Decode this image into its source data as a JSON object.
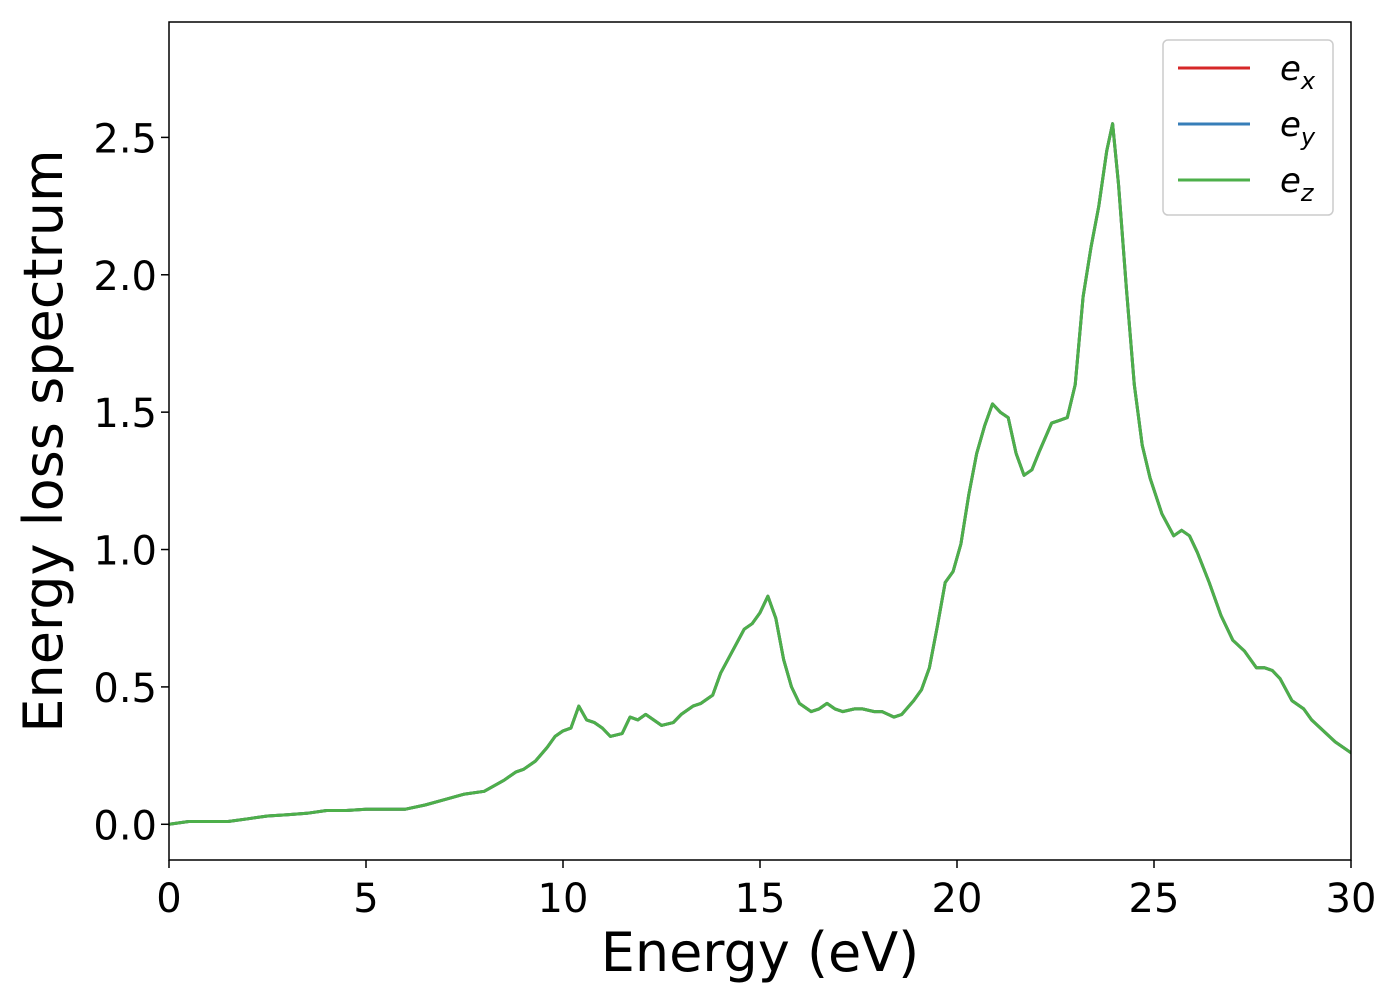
{
  "chart_data": {
    "type": "line",
    "title": "",
    "xlabel": "Energy (eV)",
    "ylabel": "Energy loss spectrum",
    "xlim": [
      0,
      30
    ],
    "ylim": [
      -0.13,
      2.92
    ],
    "xticks": [
      0,
      5,
      10,
      15,
      20,
      25,
      30
    ],
    "yticks": [
      0.0,
      0.5,
      1.0,
      1.5,
      2.0,
      2.5
    ],
    "grid": false,
    "legend_position": "top-right",
    "series": [
      {
        "name": "e",
        "subscript": "x",
        "color": "#d62728",
        "x": [
          0,
          0.5,
          1,
          1.5,
          2,
          2.5,
          3,
          3.5,
          4,
          4.5,
          5,
          5.5,
          6,
          6.5,
          7,
          7.5,
          8,
          8.5,
          8.8,
          9,
          9.3,
          9.6,
          9.8,
          10,
          10.2,
          10.4,
          10.6,
          10.8,
          11,
          11.2,
          11.5,
          11.7,
          11.9,
          12.1,
          12.3,
          12.5,
          12.8,
          13,
          13.3,
          13.5,
          13.8,
          14,
          14.3,
          14.6,
          14.8,
          15,
          15.2,
          15.4,
          15.6,
          15.8,
          16,
          16.3,
          16.5,
          16.7,
          16.9,
          17.1,
          17.4,
          17.6,
          17.9,
          18.1,
          18.4,
          18.6,
          18.9,
          19.1,
          19.3,
          19.5,
          19.7,
          19.9,
          20.1,
          20.3,
          20.5,
          20.7,
          20.9,
          21.1,
          21.3,
          21.5,
          21.7,
          21.9,
          22.1,
          22.4,
          22.6,
          22.8,
          23,
          23.2,
          23.4,
          23.6,
          23.8,
          23.95,
          24.1,
          24.3,
          24.5,
          24.7,
          24.9,
          25.2,
          25.5,
          25.7,
          25.9,
          26.1,
          26.4,
          26.7,
          27,
          27.3,
          27.6,
          27.8,
          28,
          28.2,
          28.5,
          28.8,
          29,
          29.3,
          29.6,
          30
        ],
        "y": [
          0.0,
          0.01,
          0.01,
          0.01,
          0.02,
          0.03,
          0.035,
          0.04,
          0.05,
          0.05,
          0.055,
          0.055,
          0.055,
          0.07,
          0.09,
          0.11,
          0.12,
          0.16,
          0.19,
          0.2,
          0.23,
          0.28,
          0.32,
          0.34,
          0.35,
          0.43,
          0.38,
          0.37,
          0.35,
          0.32,
          0.33,
          0.39,
          0.38,
          0.4,
          0.38,
          0.36,
          0.37,
          0.4,
          0.43,
          0.44,
          0.47,
          0.55,
          0.63,
          0.71,
          0.73,
          0.77,
          0.83,
          0.75,
          0.6,
          0.5,
          0.44,
          0.41,
          0.42,
          0.44,
          0.42,
          0.41,
          0.42,
          0.42,
          0.41,
          0.41,
          0.39,
          0.4,
          0.45,
          0.49,
          0.57,
          0.72,
          0.88,
          0.92,
          1.02,
          1.2,
          1.35,
          1.45,
          1.53,
          1.5,
          1.48,
          1.35,
          1.27,
          1.29,
          1.36,
          1.46,
          1.47,
          1.48,
          1.6,
          1.92,
          2.1,
          2.25,
          2.45,
          2.55,
          2.33,
          1.95,
          1.6,
          1.38,
          1.26,
          1.13,
          1.05,
          1.07,
          1.05,
          0.99,
          0.88,
          0.76,
          0.67,
          0.63,
          0.57,
          0.57,
          0.56,
          0.53,
          0.45,
          0.42,
          0.38,
          0.34,
          0.3,
          0.26
        ]
      },
      {
        "name": "e",
        "subscript": "y",
        "color": "#377eb8",
        "x": [
          0,
          0.5,
          1,
          1.5,
          2,
          2.5,
          3,
          3.5,
          4,
          4.5,
          5,
          5.5,
          6,
          6.5,
          7,
          7.5,
          8,
          8.5,
          8.8,
          9,
          9.3,
          9.6,
          9.8,
          10,
          10.2,
          10.4,
          10.6,
          10.8,
          11,
          11.2,
          11.5,
          11.7,
          11.9,
          12.1,
          12.3,
          12.5,
          12.8,
          13,
          13.3,
          13.5,
          13.8,
          14,
          14.3,
          14.6,
          14.8,
          15,
          15.2,
          15.4,
          15.6,
          15.8,
          16,
          16.3,
          16.5,
          16.7,
          16.9,
          17.1,
          17.4,
          17.6,
          17.9,
          18.1,
          18.4,
          18.6,
          18.9,
          19.1,
          19.3,
          19.5,
          19.7,
          19.9,
          20.1,
          20.3,
          20.5,
          20.7,
          20.9,
          21.1,
          21.3,
          21.5,
          21.7,
          21.9,
          22.1,
          22.4,
          22.6,
          22.8,
          23,
          23.2,
          23.4,
          23.6,
          23.8,
          23.95,
          24.1,
          24.3,
          24.5,
          24.7,
          24.9,
          25.2,
          25.5,
          25.7,
          25.9,
          26.1,
          26.4,
          26.7,
          27,
          27.3,
          27.6,
          27.8,
          28,
          28.2,
          28.5,
          28.8,
          29,
          29.3,
          29.6,
          30
        ],
        "y": [
          0.0,
          0.01,
          0.01,
          0.01,
          0.02,
          0.03,
          0.035,
          0.04,
          0.05,
          0.05,
          0.055,
          0.055,
          0.055,
          0.07,
          0.09,
          0.11,
          0.12,
          0.16,
          0.19,
          0.2,
          0.23,
          0.28,
          0.32,
          0.34,
          0.35,
          0.43,
          0.38,
          0.37,
          0.35,
          0.32,
          0.33,
          0.39,
          0.38,
          0.4,
          0.38,
          0.36,
          0.37,
          0.4,
          0.43,
          0.44,
          0.47,
          0.55,
          0.63,
          0.71,
          0.73,
          0.77,
          0.83,
          0.75,
          0.6,
          0.5,
          0.44,
          0.41,
          0.42,
          0.44,
          0.42,
          0.41,
          0.42,
          0.42,
          0.41,
          0.41,
          0.39,
          0.4,
          0.45,
          0.49,
          0.57,
          0.72,
          0.88,
          0.92,
          1.02,
          1.2,
          1.35,
          1.45,
          1.53,
          1.5,
          1.48,
          1.35,
          1.27,
          1.29,
          1.36,
          1.46,
          1.47,
          1.48,
          1.6,
          1.92,
          2.1,
          2.25,
          2.45,
          2.55,
          2.33,
          1.95,
          1.6,
          1.38,
          1.26,
          1.13,
          1.05,
          1.07,
          1.05,
          0.99,
          0.88,
          0.76,
          0.67,
          0.63,
          0.57,
          0.57,
          0.56,
          0.53,
          0.45,
          0.42,
          0.38,
          0.34,
          0.3,
          0.26
        ]
      },
      {
        "name": "e",
        "subscript": "z",
        "color": "#4daf4a",
        "x": [
          0,
          0.5,
          1,
          1.5,
          2,
          2.5,
          3,
          3.5,
          4,
          4.5,
          5,
          5.5,
          6,
          6.5,
          7,
          7.5,
          8,
          8.5,
          8.8,
          9,
          9.3,
          9.6,
          9.8,
          10,
          10.2,
          10.4,
          10.6,
          10.8,
          11,
          11.2,
          11.5,
          11.7,
          11.9,
          12.1,
          12.3,
          12.5,
          12.8,
          13,
          13.3,
          13.5,
          13.8,
          14,
          14.3,
          14.6,
          14.8,
          15,
          15.2,
          15.4,
          15.6,
          15.8,
          16,
          16.3,
          16.5,
          16.7,
          16.9,
          17.1,
          17.4,
          17.6,
          17.9,
          18.1,
          18.4,
          18.6,
          18.9,
          19.1,
          19.3,
          19.5,
          19.7,
          19.9,
          20.1,
          20.3,
          20.5,
          20.7,
          20.9,
          21.1,
          21.3,
          21.5,
          21.7,
          21.9,
          22.1,
          22.4,
          22.6,
          22.8,
          23,
          23.2,
          23.4,
          23.6,
          23.8,
          23.95,
          24.1,
          24.3,
          24.5,
          24.7,
          24.9,
          25.2,
          25.5,
          25.7,
          25.9,
          26.1,
          26.4,
          26.7,
          27,
          27.3,
          27.6,
          27.8,
          28,
          28.2,
          28.5,
          28.8,
          29,
          29.3,
          29.6,
          30
        ],
        "y": [
          0.0,
          0.01,
          0.01,
          0.01,
          0.02,
          0.03,
          0.035,
          0.04,
          0.05,
          0.05,
          0.055,
          0.055,
          0.055,
          0.07,
          0.09,
          0.11,
          0.12,
          0.16,
          0.19,
          0.2,
          0.23,
          0.28,
          0.32,
          0.34,
          0.35,
          0.43,
          0.38,
          0.37,
          0.35,
          0.32,
          0.33,
          0.39,
          0.38,
          0.4,
          0.38,
          0.36,
          0.37,
          0.4,
          0.43,
          0.44,
          0.47,
          0.55,
          0.63,
          0.71,
          0.73,
          0.77,
          0.83,
          0.75,
          0.6,
          0.5,
          0.44,
          0.41,
          0.42,
          0.44,
          0.42,
          0.41,
          0.42,
          0.42,
          0.41,
          0.41,
          0.39,
          0.4,
          0.45,
          0.49,
          0.57,
          0.72,
          0.88,
          0.92,
          1.02,
          1.2,
          1.35,
          1.45,
          1.53,
          1.5,
          1.48,
          1.35,
          1.27,
          1.29,
          1.36,
          1.46,
          1.47,
          1.48,
          1.6,
          1.92,
          2.1,
          2.25,
          2.45,
          2.55,
          2.33,
          1.95,
          1.6,
          1.38,
          1.26,
          1.13,
          1.05,
          1.07,
          1.05,
          0.99,
          0.88,
          0.76,
          0.67,
          0.63,
          0.57,
          0.57,
          0.56,
          0.53,
          0.45,
          0.42,
          0.38,
          0.34,
          0.3,
          0.26
        ]
      }
    ]
  }
}
